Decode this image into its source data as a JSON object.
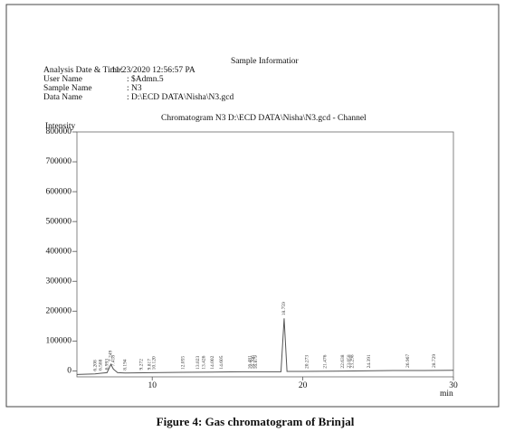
{
  "header": {
    "title": "Sample Informatior",
    "fields": [
      {
        "label": "Analysis Date & Time:",
        "value": "11/23/2020 12:56:57 PA"
      },
      {
        "label": "User Name",
        "value": ": $Admn.5"
      },
      {
        "label": "Sample Name",
        "value": ": N3"
      },
      {
        "label": "Data Name",
        "value": ": D:\\ECD DATA\\Nisha\\N3.gcd"
      }
    ]
  },
  "chart_data": {
    "type": "line",
    "title": "Chromatogram N3 D:\\ECD DATA\\Nisha\\N3.gcd - Channel",
    "y_label": "Intensity",
    "x_label": "min",
    "xlim": [
      5,
      30
    ],
    "xticks": [
      10,
      20,
      30
    ],
    "ylim": [
      -20000,
      800000
    ],
    "yticks": [
      0,
      100000,
      200000,
      300000,
      400000,
      500000,
      600000,
      700000,
      800000
    ],
    "series": [
      {
        "color": "#555555",
        "x": [
          5,
          6.2,
          6.6,
          7.0,
          7.25,
          7.42,
          7.7,
          8.2,
          10,
          12,
          14,
          16,
          18.55,
          18.759,
          18.95,
          20,
          22,
          24,
          26,
          28,
          30
        ],
        "values": [
          -12000,
          -10000,
          -8000,
          -6000,
          22000,
          6000,
          -6000,
          -7000,
          -6000,
          -5000,
          -4000,
          -3000,
          -3000,
          176000,
          -2000,
          -2000,
          -1000,
          0,
          1000,
          1000,
          2000
        ]
      }
    ],
    "peaks": {
      "x": [
        6.208,
        6.588,
        6.993,
        7.249,
        7.418,
        8.194,
        9.272,
        9.817,
        {
          "value": 10.12,
          "label": "10.120"
        },
        12.055,
        13.023,
        13.426,
        14.002,
        14.605,
        16.481,
        16.706,
        16.879,
        18.759,
        20.273,
        21.476,
        22.638,
        23.058,
        23.298,
        24.391,
        26.967,
        28.729
      ]
    }
  },
  "caption": "Figure 4: Gas chromatogram of Brinjal"
}
